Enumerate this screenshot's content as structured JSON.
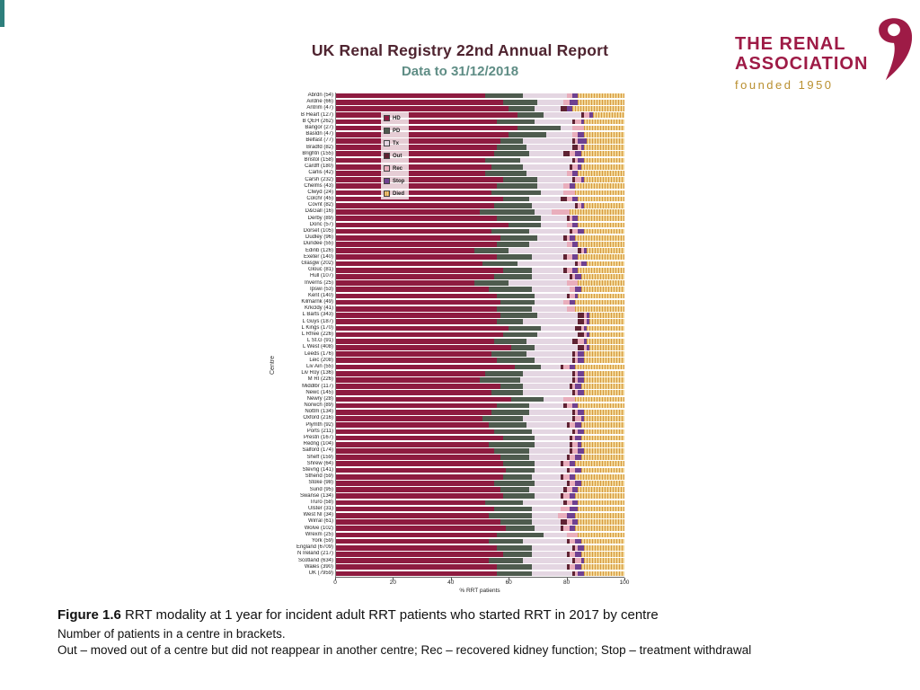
{
  "slide": {
    "title": "UK Renal Registry 22nd Annual Report",
    "subtitle": "Data to 31/12/2018"
  },
  "logo": {
    "line1": "THE RENAL",
    "line2": "ASSOCIATION",
    "line3": "founded 1950",
    "brand_color": "#9e1b46",
    "gold_color": "#b98f2f"
  },
  "caption": {
    "figure_label": "Figure 1.6",
    "figure_text": " RRT modality at 1 year for incident adult RRT patients who started RRT in 2017 by centre",
    "note1": "Number of patients in a centre in brackets.",
    "note2": "Out – moved out of a centre but did not reappear in another centre; Rec – recovered kidney function; Stop – treatment withdrawal"
  },
  "chart_data": {
    "type": "bar",
    "orientation": "horizontal",
    "stacked": true,
    "title": "",
    "xlabel": "% RRT patients",
    "ylabel": "Centre",
    "xlim": [
      0,
      100
    ],
    "xticks": [
      0,
      20,
      40,
      60,
      80,
      100
    ],
    "legend": [
      "HD",
      "PD",
      "Tx",
      "Out",
      "Rec",
      "Stop",
      "Died"
    ],
    "legend_position": "upper-left-inside",
    "grid": false,
    "colors": {
      "HD": "#8e1b40",
      "PD": "#4e5b4e",
      "Tx": "#e4d6e2",
      "Out": "#5f2333",
      "Rec": "#e9aebc",
      "Stop": "#6f4191",
      "Died": "#eccc84"
    },
    "categories": [
      "Abrdn (54)",
      "Airdrie (66)",
      "Antrim (47)",
      "B Heart (127)",
      "B QEH (262)",
      "Bangor (27)",
      "Basldn (47)",
      "Belfast (77)",
      "Bradfd (82)",
      "Brightn (155)",
      "Bristol (158)",
      "Cardff (180)",
      "Carlis (42)",
      "Carsh (232)",
      "Chelms (43)",
      "Clwyd (24)",
      "Colchr (45)",
      "Covnt (82)",
      "D&Gall (16)",
      "Derby (89)",
      "Donc (57)",
      "Dorset (105)",
      "Dudley (96)",
      "Dundee (55)",
      "Edinb (126)",
      "Exeter (140)",
      "Glasgw (202)",
      "Glouc (81)",
      "Hull (107)",
      "Inverns (25)",
      "Ipswi (53)",
      "Kent (140)",
      "Kilmarnk (49)",
      "Krkcldy (41)",
      "L Barts (343)",
      "L Guys (187)",
      "L Kings (170)",
      "L Rfree (226)",
      "L St.G (91)",
      "L West (408)",
      "Leeds (176)",
      "Leic (208)",
      "Liv Ain (55)",
      "Liv Roy (136)",
      "M RI (226)",
      "Middlbr (117)",
      "Newc (145)",
      "Newry (28)",
      "Norwch (89)",
      "Nottm (134)",
      "Oxford (216)",
      "Plymth (92)",
      "Ports (211)",
      "Prestn (167)",
      "Redng (104)",
      "Salford (174)",
      "Sheff (159)",
      "Shrew (64)",
      "Stevng (141)",
      "Sthend (59)",
      "Stoke (98)",
      "Sund (95)",
      "Swanse (134)",
      "Truro (58)",
      "Ulster (31)",
      "West NI (34)",
      "Wirral (61)",
      "Wolve (102)",
      "Wrexm (25)",
      "York (59)",
      "England (6709)",
      "N Ireland (217)",
      "Scotland (634)",
      "Wales (390)",
      "UK (7959)"
    ],
    "series": [
      {
        "name": "HD",
        "values": [
          52,
          58,
          60,
          63,
          56,
          63,
          60,
          57,
          56,
          55,
          52,
          54,
          52,
          58,
          56,
          54,
          58,
          55,
          50,
          56,
          60,
          54,
          57,
          56,
          48,
          56,
          51,
          58,
          55,
          48,
          53,
          56,
          57,
          56,
          57,
          56,
          60,
          58,
          55,
          61,
          54,
          56,
          62,
          52,
          50,
          57,
          54,
          61,
          56,
          54,
          51,
          53,
          55,
          58,
          53,
          55,
          57,
          58,
          59,
          58,
          55,
          57,
          58,
          52,
          55,
          53,
          57,
          59,
          56,
          53,
          56,
          58,
          53,
          56,
          56
        ]
      },
      {
        "name": "PD",
        "values": [
          13,
          12,
          9,
          9,
          13,
          15,
          13,
          8,
          10,
          12,
          12,
          11,
          14,
          12,
          14,
          17,
          9,
          13,
          19,
          15,
          11,
          13,
          13,
          11,
          12,
          12,
          12,
          10,
          13,
          12,
          15,
          13,
          12,
          12,
          13,
          9,
          11,
          12,
          11,
          8,
          12,
          13,
          9,
          13,
          14,
          8,
          11,
          11,
          11,
          13,
          14,
          13,
          13,
          11,
          16,
          12,
          10,
          11,
          10,
          10,
          14,
          10,
          11,
          13,
          13,
          15,
          11,
          10,
          16,
          12,
          12,
          10,
          12,
          12,
          12
        ]
      },
      {
        "name": "Tx",
        "values": [
          15,
          9,
          9,
          13,
          13,
          4,
          9,
          17,
          16,
          12,
          18,
          16,
          14,
          12,
          9,
          8,
          11,
          15,
          6,
          9,
          9,
          14,
          9,
          13,
          24,
          11,
          20,
          11,
          13,
          20,
          13,
          11,
          10,
          12,
          14,
          19,
          12,
          14,
          16,
          15,
          16,
          13,
          7,
          17,
          18,
          16,
          17,
          7,
          12,
          15,
          17,
          14,
          14,
          12,
          12,
          14,
          13,
          9,
          11,
          10,
          11,
          12,
          9,
          14,
          10,
          9,
          10,
          9,
          8,
          15,
          14,
          12,
          17,
          12,
          14
        ]
      },
      {
        "name": "Out",
        "values": [
          0,
          0,
          2,
          1,
          1,
          0,
          0,
          1,
          2,
          2,
          1,
          1,
          0,
          1,
          0,
          0,
          2,
          1,
          0,
          1,
          0,
          1,
          1,
          0,
          1,
          1,
          1,
          1,
          1,
          0,
          0,
          1,
          0,
          0,
          2,
          2,
          2,
          2,
          2,
          2,
          1,
          1,
          1,
          1,
          1,
          1,
          1,
          0,
          1,
          1,
          1,
          1,
          1,
          1,
          1,
          1,
          1,
          1,
          1,
          1,
          1,
          1,
          1,
          1,
          0,
          0,
          2,
          1,
          0,
          1,
          1,
          1,
          1,
          1,
          1
        ]
      },
      {
        "name": "Rec",
        "values": [
          2,
          2,
          0,
          2,
          2,
          4,
          2,
          1,
          1,
          2,
          1,
          2,
          2,
          2,
          2,
          4,
          2,
          1,
          6,
          1,
          2,
          2,
          1,
          2,
          1,
          2,
          1,
          2,
          1,
          4,
          2,
          2,
          2,
          3,
          1,
          1,
          1,
          1,
          2,
          1,
          1,
          1,
          2,
          1,
          1,
          1,
          1,
          4,
          2,
          1,
          2,
          2,
          1,
          1,
          2,
          2,
          2,
          2,
          2,
          2,
          2,
          2,
          2,
          2,
          3,
          3,
          2,
          2,
          4,
          2,
          1,
          2,
          2,
          2,
          1
        ]
      },
      {
        "name": "Stop",
        "values": [
          2,
          3,
          2,
          1,
          1,
          0,
          2,
          3,
          1,
          2,
          2,
          1,
          2,
          1,
          2,
          0,
          2,
          1,
          0,
          2,
          2,
          2,
          2,
          2,
          1,
          2,
          2,
          2,
          2,
          0,
          2,
          1,
          2,
          0,
          1,
          1,
          1,
          1,
          1,
          1,
          2,
          2,
          2,
          2,
          2,
          2,
          2,
          0,
          2,
          2,
          1,
          2,
          2,
          2,
          1,
          2,
          2,
          2,
          2,
          2,
          2,
          2,
          2,
          2,
          3,
          3,
          2,
          2,
          0,
          2,
          2,
          2,
          1,
          2,
          2
        ]
      },
      {
        "name": "Died",
        "values": [
          16,
          16,
          18,
          11,
          14,
          14,
          14,
          13,
          14,
          15,
          14,
          15,
          16,
          14,
          17,
          17,
          16,
          14,
          19,
          16,
          16,
          14,
          17,
          16,
          13,
          16,
          13,
          16,
          15,
          16,
          15,
          16,
          17,
          17,
          12,
          12,
          13,
          12,
          13,
          12,
          14,
          14,
          17,
          14,
          14,
          15,
          14,
          17,
          16,
          14,
          14,
          15,
          14,
          15,
          15,
          14,
          15,
          17,
          15,
          17,
          15,
          16,
          17,
          16,
          16,
          17,
          16,
          17,
          16,
          15,
          14,
          15,
          14,
          15,
          14
        ]
      }
    ]
  }
}
